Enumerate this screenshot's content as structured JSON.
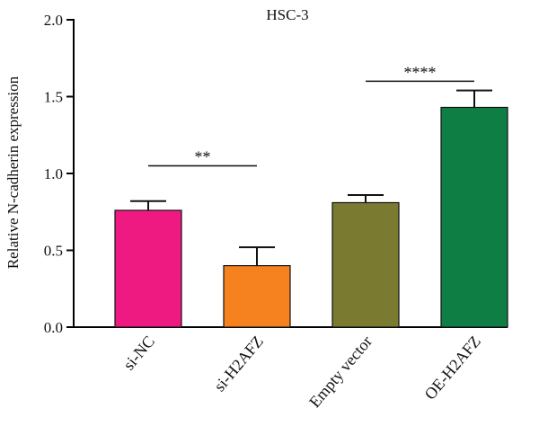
{
  "chart_data": {
    "type": "bar",
    "title": "HSC-3",
    "xlabel": "",
    "ylabel": "Relative N-cadherin expression",
    "ylim": [
      0,
      2.0
    ],
    "yticks": [
      0.0,
      0.5,
      1.0,
      1.5,
      2.0
    ],
    "ytick_labels": [
      "0.0",
      "0.5",
      "1.0",
      "1.5",
      "2.0"
    ],
    "categories": [
      "si-NC",
      "si-H2AFZ",
      "Empty vector",
      "OE-H2AFZ"
    ],
    "values": [
      0.76,
      0.4,
      0.81,
      1.43
    ],
    "errors": [
      0.06,
      0.12,
      0.05,
      0.11
    ],
    "colors": [
      "#ee1a82",
      "#f5821f",
      "#7a7a30",
      "#0e7e44"
    ],
    "significance": [
      {
        "from": 0,
        "to": 1,
        "y": 1.05,
        "label": "**"
      },
      {
        "from": 2,
        "to": 3,
        "y": 1.6,
        "label": "****"
      }
    ],
    "grid": false,
    "legend": "none"
  }
}
